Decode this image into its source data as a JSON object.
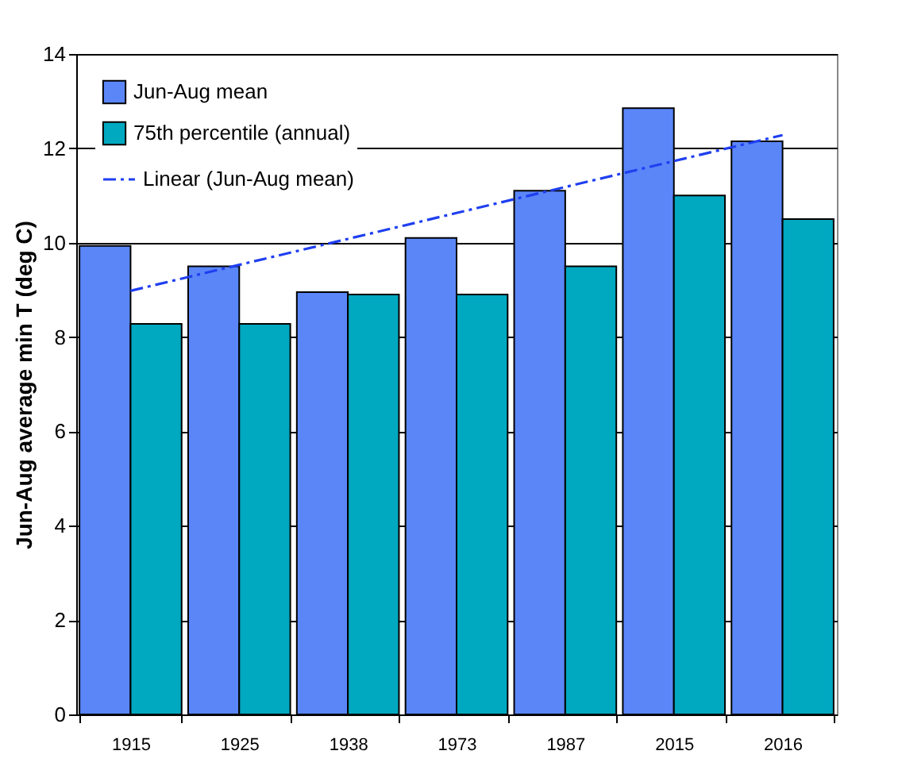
{
  "chart_data": {
    "type": "bar",
    "ylabel": "Jun-Aug average min T (deg C)",
    "categories": [
      "1915",
      "1925",
      "1938",
      "1973",
      "1987",
      "2015",
      "2016"
    ],
    "series": [
      {
        "name": "Jun-Aug mean",
        "color": "#5a86f8",
        "values": [
          9.93,
          9.5,
          8.95,
          10.1,
          11.1,
          12.85,
          12.15
        ]
      },
      {
        "name": "75th percentile (annual)",
        "color": "#00a8c0",
        "values": [
          8.28,
          8.28,
          8.9,
          8.9,
          9.5,
          11.0,
          10.5
        ]
      },
      {
        "name": "Linear (Jun-Aug mean)",
        "type": "line",
        "color": "#1f3ff0",
        "line_style": "dashed",
        "values": [
          8.98,
          9.53,
          10.08,
          10.63,
          11.18,
          11.73,
          12.28
        ]
      }
    ],
    "ylim": [
      0,
      14
    ],
    "yticks": [
      0,
      2,
      4,
      6,
      8,
      10,
      12,
      14
    ],
    "grid": "y",
    "legend": "top left"
  }
}
